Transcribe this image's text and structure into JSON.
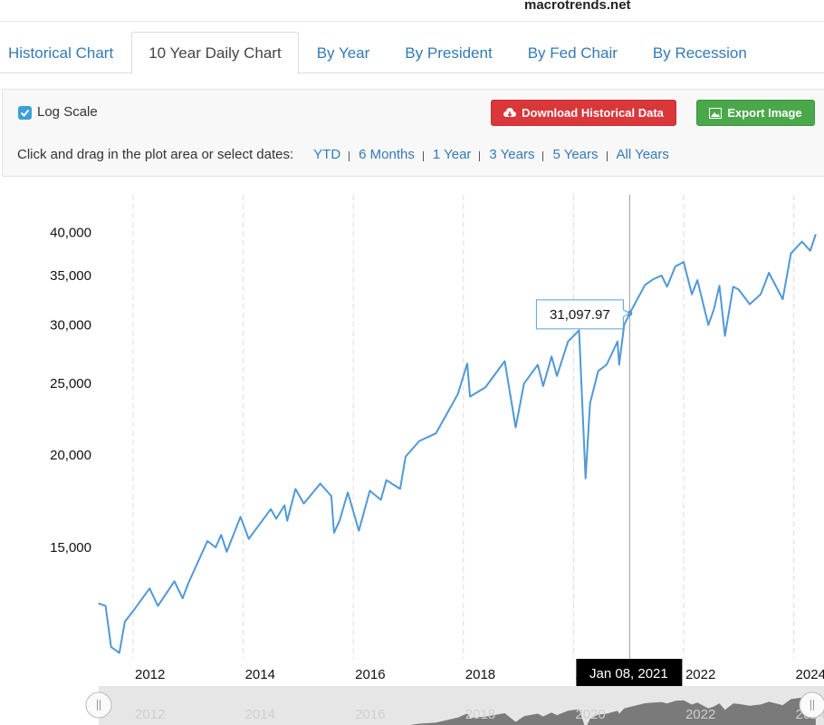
{
  "header": {
    "site": "macrotrends.net"
  },
  "tabs": [
    "Historical Chart",
    "10 Year Daily Chart",
    "By Year",
    "By President",
    "By Fed Chair",
    "By Recession"
  ],
  "active_tab": 1,
  "toolbar": {
    "log_scale_label": "Log Scale",
    "download_button": "Download Historical Data",
    "export_button": "Export Image",
    "range_prompt": "Click and drag in the plot area or select dates:",
    "range_links": [
      "YTD",
      "6 Months",
      "1 Year",
      "3 Years",
      "5 Years",
      "All Years"
    ]
  },
  "chart_data": {
    "type": "line",
    "log_scale": true,
    "color": "#5198d6",
    "grid": "x",
    "x": [
      2011.37,
      2011.5,
      2011.6,
      2011.75,
      2011.85,
      2012.0,
      2012.3,
      2012.45,
      2012.75,
      2012.9,
      2013.0,
      2013.35,
      2013.5,
      2013.6,
      2013.7,
      2013.95,
      2014.1,
      2014.5,
      2014.6,
      2014.75,
      2014.8,
      2014.95,
      2015.1,
      2015.4,
      2015.6,
      2015.65,
      2015.75,
      2015.9,
      2016.1,
      2016.3,
      2016.5,
      2016.6,
      2016.85,
      2016.95,
      2017.2,
      2017.5,
      2017.9,
      2018.07,
      2018.12,
      2018.4,
      2018.75,
      2018.95,
      2019.1,
      2019.35,
      2019.45,
      2019.6,
      2019.7,
      2019.9,
      2020.1,
      2020.22,
      2020.3,
      2020.45,
      2020.6,
      2020.8,
      2020.83,
      2020.92,
      2021.02,
      2021.3,
      2021.45,
      2021.6,
      2021.7,
      2021.85,
      2022.0,
      2022.15,
      2022.25,
      2022.45,
      2022.55,
      2022.65,
      2022.75,
      2022.9,
      2023.0,
      2023.2,
      2023.4,
      2023.55,
      2023.8,
      2023.95,
      2024.15,
      2024.3,
      2024.4
    ],
    "values": [
      12600,
      12500,
      11000,
      10800,
      11900,
      12300,
      13200,
      12500,
      13500,
      12800,
      13400,
      15300,
      15000,
      15600,
      14800,
      16500,
      15400,
      16900,
      16400,
      17100,
      16300,
      18000,
      17200,
      18300,
      17600,
      15700,
      16300,
      17800,
      15800,
      17900,
      17400,
      18500,
      18000,
      19900,
      20900,
      21400,
      24200,
      26600,
      24000,
      24700,
      26800,
      21800,
      25000,
      26500,
      24800,
      27200,
      25600,
      28500,
      29500,
      18600,
      23500,
      26000,
      26500,
      28500,
      26500,
      30000,
      31097.97,
      34000,
      34600,
      35000,
      33800,
      36000,
      36500,
      33000,
      34500,
      30000,
      31500,
      33900,
      29000,
      33800,
      33500,
      32000,
      33000,
      35300,
      32500,
      37500,
      38900,
      37800,
      39800
    ],
    "xlim": [
      2011.375,
      2024.55
    ],
    "xticks": [
      2012,
      2014,
      2016,
      2018,
      2020,
      2022,
      2024
    ],
    "ylim": [
      10600,
      45000
    ],
    "yticks": [
      {
        "value": 15000,
        "label": "15,000"
      },
      {
        "value": 20000,
        "label": "20,000"
      },
      {
        "value": 25000,
        "label": "25,000"
      },
      {
        "value": 30000,
        "label": "30,000"
      },
      {
        "value": 35000,
        "label": "35,000"
      },
      {
        "value": 40000,
        "label": "40,000"
      }
    ],
    "tooltip": {
      "x": 2021.02,
      "value": 31097.97,
      "label": "31,097.97",
      "date": "Jan 08, 2021"
    }
  }
}
